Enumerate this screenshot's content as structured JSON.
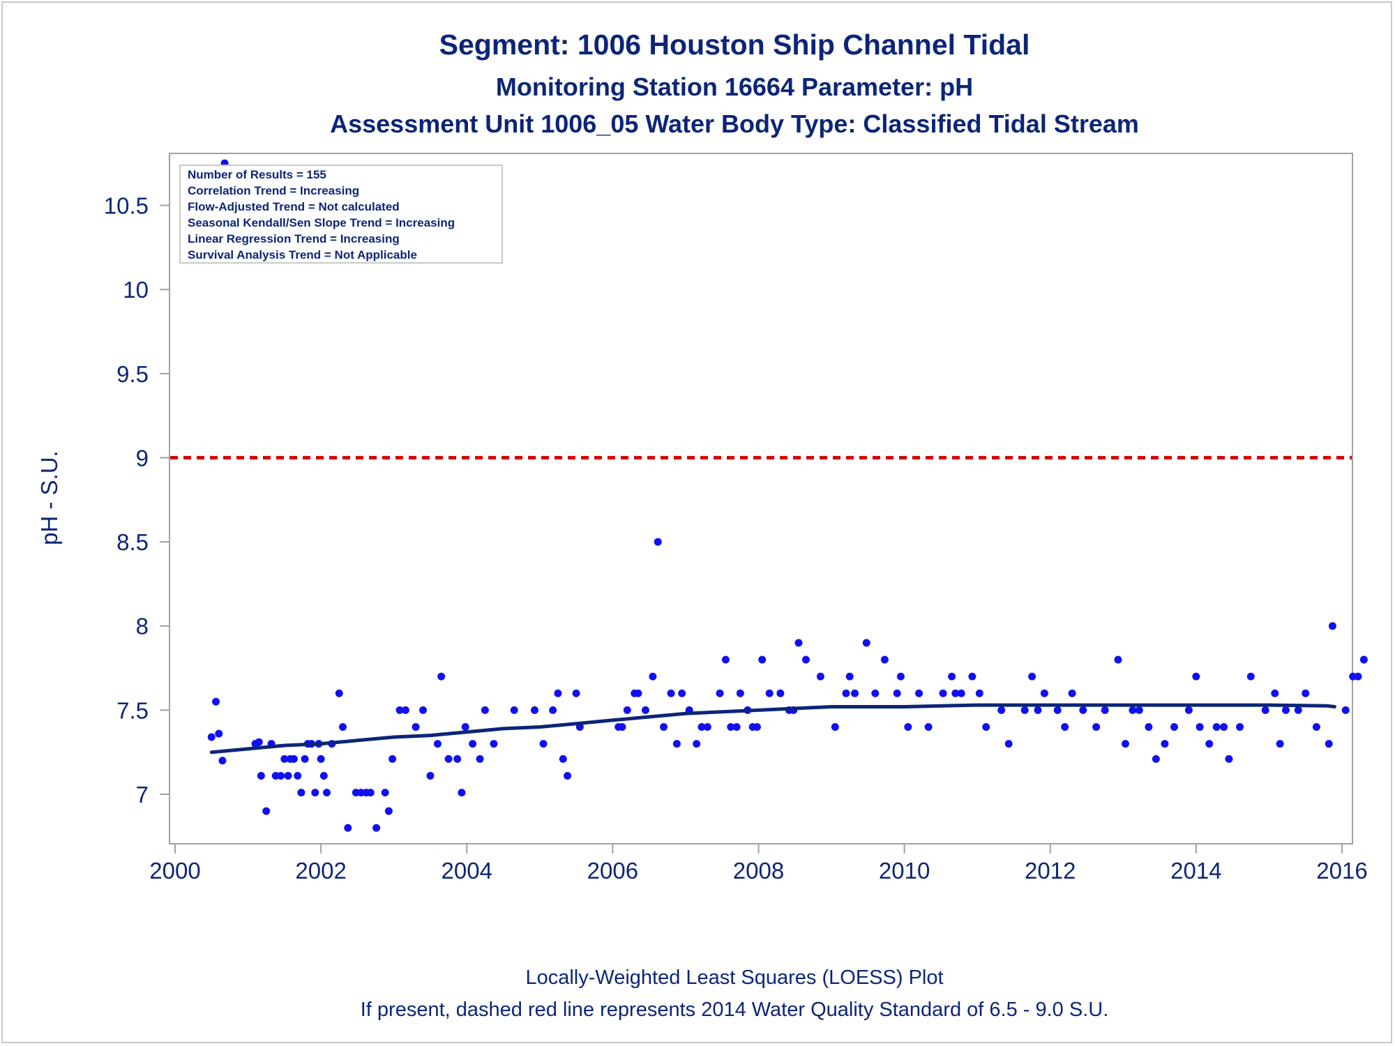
{
  "chart_data": {
    "type": "scatter",
    "title": "Segment: 1006  Houston Ship Channel Tidal",
    "subtitle": "Monitoring Station 16664 Parameter: pH",
    "subtitle2": "Assessment Unit 1006_05   Water Body Type: Classified Tidal Stream",
    "xlabel": "",
    "ylabel": "pH - S.U.",
    "xlim": [
      2000,
      2016
    ],
    "ylim": [
      6.85,
      10.8
    ],
    "xticks": [
      "2000",
      "2002",
      "2004",
      "2006",
      "2008",
      "2010",
      "2012",
      "2014",
      "2016"
    ],
    "yticks": [
      "7",
      "7.5",
      "8",
      "8.5",
      "9",
      "9.5",
      "10",
      "10.5"
    ],
    "grid": false,
    "legend": {
      "placement": "top-left",
      "lines": [
        "Number of Results = 155",
        "Correlation Trend = Increasing",
        "Flow-Adjusted Trend = Not calculated",
        "Seasonal Kendall/Sen Slope Trend = Increasing",
        "Linear Regression Trend = Increasing",
        "Survival Analysis Trend = Not Applicable"
      ]
    },
    "reference_line": {
      "y": 9.0,
      "color": "#d40000",
      "style": "dashed"
    },
    "colors": {
      "points": "#1010f0",
      "loess": "#0c2577",
      "text": "#0c2577",
      "frame": "#a0a0a0"
    },
    "footnotes": [
      "Locally-Weighted Least Squares (LOESS) Plot",
      "If present, dashed red line represents 2014 Water Quality Standard of 6.5 - 9.0 S.U."
    ],
    "series": [
      {
        "type": "scatter",
        "points": [
          [
            2000.5,
            7.34
          ],
          [
            2000.56,
            7.55
          ],
          [
            2000.6,
            7.36
          ],
          [
            2000.65,
            7.2
          ],
          [
            2000.68,
            10.75
          ],
          [
            2001.1,
            7.3
          ],
          [
            2001.15,
            7.31
          ],
          [
            2001.18,
            7.11
          ],
          [
            2001.25,
            6.9
          ],
          [
            2001.32,
            7.3
          ],
          [
            2001.38,
            7.11
          ],
          [
            2001.45,
            7.11
          ],
          [
            2001.5,
            7.21
          ],
          [
            2001.55,
            7.11
          ],
          [
            2001.58,
            7.21
          ],
          [
            2001.63,
            7.21
          ],
          [
            2001.68,
            7.11
          ],
          [
            2001.73,
            7.01
          ],
          [
            2001.78,
            7.21
          ],
          [
            2001.82,
            7.3
          ],
          [
            2001.87,
            7.3
          ],
          [
            2001.92,
            7.01
          ],
          [
            2001.97,
            7.3
          ],
          [
            2002.0,
            7.21
          ],
          [
            2002.04,
            7.11
          ],
          [
            2002.08,
            7.01
          ],
          [
            2002.15,
            7.3
          ],
          [
            2002.25,
            7.6
          ],
          [
            2002.3,
            7.4
          ],
          [
            2002.37,
            6.8
          ],
          [
            2002.48,
            7.01
          ],
          [
            2002.55,
            7.01
          ],
          [
            2002.62,
            7.01
          ],
          [
            2002.68,
            7.01
          ],
          [
            2002.76,
            6.8
          ],
          [
            2002.88,
            7.01
          ],
          [
            2002.93,
            6.9
          ],
          [
            2002.98,
            7.21
          ],
          [
            2003.08,
            7.5
          ],
          [
            2003.16,
            7.5
          ],
          [
            2003.3,
            7.4
          ],
          [
            2003.4,
            7.5
          ],
          [
            2003.5,
            7.11
          ],
          [
            2003.6,
            7.3
          ],
          [
            2003.65,
            7.7
          ],
          [
            2003.75,
            7.21
          ],
          [
            2003.87,
            7.21
          ],
          [
            2003.93,
            7.01
          ],
          [
            2003.98,
            7.4
          ],
          [
            2004.08,
            7.3
          ],
          [
            2004.18,
            7.21
          ],
          [
            2004.25,
            7.5
          ],
          [
            2004.37,
            7.3
          ],
          [
            2004.65,
            7.5
          ],
          [
            2004.93,
            7.5
          ],
          [
            2005.05,
            7.3
          ],
          [
            2005.18,
            7.5
          ],
          [
            2005.25,
            7.6
          ],
          [
            2005.32,
            7.21
          ],
          [
            2005.38,
            7.11
          ],
          [
            2005.5,
            7.6
          ],
          [
            2005.55,
            7.4
          ],
          [
            2006.08,
            7.4
          ],
          [
            2006.13,
            7.4
          ],
          [
            2006.2,
            7.5
          ],
          [
            2006.3,
            7.6
          ],
          [
            2006.35,
            7.6
          ],
          [
            2006.45,
            7.5
          ],
          [
            2006.55,
            7.7
          ],
          [
            2006.62,
            8.5
          ],
          [
            2006.7,
            7.4
          ],
          [
            2006.8,
            7.6
          ],
          [
            2006.88,
            7.3
          ],
          [
            2006.95,
            7.6
          ],
          [
            2007.05,
            7.5
          ],
          [
            2007.15,
            7.3
          ],
          [
            2007.22,
            7.4
          ],
          [
            2007.3,
            7.4
          ],
          [
            2007.47,
            7.6
          ],
          [
            2007.55,
            7.8
          ],
          [
            2007.62,
            7.4
          ],
          [
            2007.7,
            7.4
          ],
          [
            2007.75,
            7.6
          ],
          [
            2007.85,
            7.5
          ],
          [
            2007.92,
            7.4
          ],
          [
            2007.98,
            7.4
          ],
          [
            2008.05,
            7.8
          ],
          [
            2008.15,
            7.6
          ],
          [
            2008.3,
            7.6
          ],
          [
            2008.42,
            7.5
          ],
          [
            2008.48,
            7.5
          ],
          [
            2008.55,
            7.9
          ],
          [
            2008.65,
            7.8
          ],
          [
            2008.85,
            7.7
          ],
          [
            2009.05,
            7.4
          ],
          [
            2009.2,
            7.6
          ],
          [
            2009.25,
            7.7
          ],
          [
            2009.32,
            7.6
          ],
          [
            2009.48,
            7.9
          ],
          [
            2009.6,
            7.6
          ],
          [
            2009.73,
            7.8
          ],
          [
            2009.9,
            7.6
          ],
          [
            2009.95,
            7.7
          ],
          [
            2010.05,
            7.4
          ],
          [
            2010.2,
            7.6
          ],
          [
            2010.33,
            7.4
          ],
          [
            2010.53,
            7.6
          ],
          [
            2010.65,
            7.7
          ],
          [
            2010.7,
            7.6
          ],
          [
            2010.78,
            7.6
          ],
          [
            2010.93,
            7.7
          ],
          [
            2011.03,
            7.6
          ],
          [
            2011.12,
            7.4
          ],
          [
            2011.33,
            7.5
          ],
          [
            2011.43,
            7.3
          ],
          [
            2011.65,
            7.5
          ],
          [
            2011.75,
            7.7
          ],
          [
            2011.83,
            7.5
          ],
          [
            2011.92,
            7.6
          ],
          [
            2012.1,
            7.5
          ],
          [
            2012.2,
            7.4
          ],
          [
            2012.3,
            7.6
          ],
          [
            2012.45,
            7.5
          ],
          [
            2012.63,
            7.4
          ],
          [
            2012.75,
            7.5
          ],
          [
            2012.93,
            7.8
          ],
          [
            2013.03,
            7.3
          ],
          [
            2013.13,
            7.5
          ],
          [
            2013.22,
            7.5
          ],
          [
            2013.35,
            7.4
          ],
          [
            2013.45,
            7.21
          ],
          [
            2013.57,
            7.3
          ],
          [
            2013.7,
            7.4
          ],
          [
            2013.9,
            7.5
          ],
          [
            2014.0,
            7.7
          ],
          [
            2014.05,
            7.4
          ],
          [
            2014.18,
            7.3
          ],
          [
            2014.28,
            7.4
          ],
          [
            2014.38,
            7.4
          ],
          [
            2014.45,
            7.21
          ],
          [
            2014.6,
            7.4
          ],
          [
            2014.75,
            7.7
          ],
          [
            2014.95,
            7.5
          ],
          [
            2015.08,
            7.6
          ],
          [
            2015.15,
            7.3
          ],
          [
            2015.23,
            7.5
          ],
          [
            2015.4,
            7.5
          ],
          [
            2015.5,
            7.6
          ],
          [
            2015.65,
            7.4
          ],
          [
            2015.82,
            7.3
          ],
          [
            2015.87,
            8.0
          ],
          [
            2016.05,
            7.5
          ],
          [
            2016.15,
            7.7
          ],
          [
            2016.22,
            7.7
          ],
          [
            2016.3,
            7.8
          ]
        ]
      },
      {
        "type": "line",
        "points": [
          [
            2000.5,
            7.25
          ],
          [
            2001.0,
            7.27
          ],
          [
            2001.5,
            7.29
          ],
          [
            2002.0,
            7.3
          ],
          [
            2002.5,
            7.32
          ],
          [
            2003.0,
            7.34
          ],
          [
            2003.5,
            7.35
          ],
          [
            2004.0,
            7.37
          ],
          [
            2004.5,
            7.39
          ],
          [
            2005.0,
            7.4
          ],
          [
            2005.5,
            7.42
          ],
          [
            2006.0,
            7.44
          ],
          [
            2006.5,
            7.46
          ],
          [
            2007.0,
            7.48
          ],
          [
            2007.5,
            7.49
          ],
          [
            2008.0,
            7.5
          ],
          [
            2008.5,
            7.51
          ],
          [
            2009.0,
            7.52
          ],
          [
            2010.0,
            7.52
          ],
          [
            2011.0,
            7.53
          ],
          [
            2012.0,
            7.53
          ],
          [
            2013.0,
            7.53
          ],
          [
            2014.0,
            7.53
          ],
          [
            2015.0,
            7.53
          ],
          [
            2015.8,
            7.525
          ],
          [
            2015.9,
            7.52
          ]
        ]
      }
    ]
  }
}
